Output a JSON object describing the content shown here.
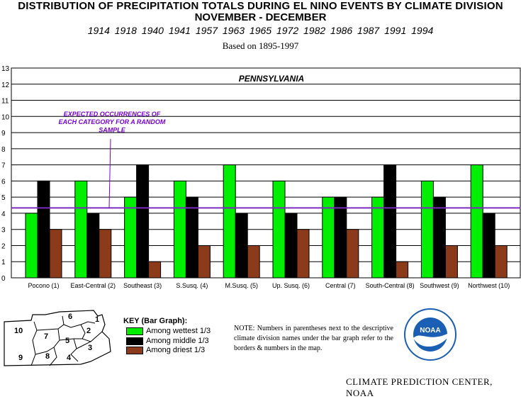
{
  "header": {
    "title_line1": "DISTRIBUTION OF PRECIPITATION TOTALS DURING EL NINO EVENTS BY CLIMATE DIVISION",
    "title_line2": "NOVEMBER - DECEMBER",
    "years": "1914  1918  1940  1941  1957  1963  1965  1972  1982  1986  1987  1991  1994",
    "based_on": "Based on 1895-1997"
  },
  "chart_data": {
    "type": "bar",
    "title": "PENNSYLVANIA",
    "ylim": [
      0,
      13
    ],
    "yticks": [
      0,
      1,
      2,
      3,
      4,
      5,
      6,
      7,
      8,
      9,
      10,
      11,
      12,
      13
    ],
    "grid": true,
    "expected_line_value": 4.33,
    "annotation": "EXPECTED OCCURRENCES OF EACH CATEGORY FOR A RANDOM SAMPLE",
    "categories": [
      "Pocono (1)",
      "East-Central (2)",
      "Southeast (3)",
      "S.Susq. (4)",
      "M.Susq. (5)",
      "Up. Susq. (6)",
      "Central (7)",
      "South-Central (8)",
      "Southwest (9)",
      "Northwest (10)"
    ],
    "series": [
      {
        "name": "Among wettest 1/3",
        "color": "#00ee00",
        "values": [
          4,
          6,
          5,
          6,
          7,
          6,
          5,
          5,
          6,
          7
        ]
      },
      {
        "name": "Among middle 1/3",
        "color": "#000000",
        "values": [
          6,
          4,
          7,
          5,
          4,
          4,
          5,
          7,
          5,
          4
        ]
      },
      {
        "name": "Among driest 1/3",
        "color": "#8b3a1a",
        "values": [
          3,
          3,
          1,
          2,
          2,
          3,
          3,
          1,
          2,
          2
        ]
      }
    ],
    "expected_line_color": "#7b2cbf",
    "annotation_color": "#7b00d4"
  },
  "key": {
    "title": "KEY (Bar Graph):",
    "items": [
      {
        "label": "Among wettest 1/3",
        "color": "#00ee00"
      },
      {
        "label": "Among middle 1/3",
        "color": "#000000"
      },
      {
        "label": "Among driest 1/3",
        "color": "#8b3a1a"
      }
    ]
  },
  "map": {
    "division_numbers": [
      "1",
      "2",
      "3",
      "4",
      "5",
      "6",
      "7",
      "8",
      "9",
      "10"
    ]
  },
  "note": "NOTE:  Numbers in parentheses next to the descriptive climate division names under the bar graph refer to the borders & numbers in the map.",
  "logo": {
    "text": "NOAA"
  },
  "credit": "CLIMATE PREDICTION CENTER, NOAA"
}
